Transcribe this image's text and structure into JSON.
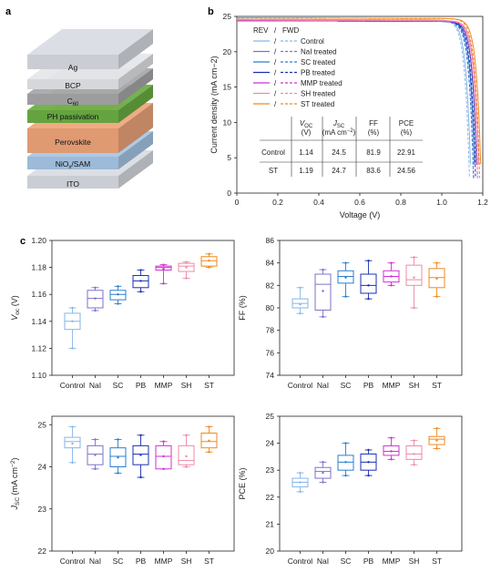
{
  "panel_labels": [
    "a",
    "b",
    "c"
  ],
  "device_stack": {
    "layers": [
      {
        "name": "Ag",
        "color": "#d9dde4"
      },
      {
        "name": "BCP",
        "color": "#e6e7ea"
      },
      {
        "name": "C60",
        "color": "#a9a9ab"
      },
      {
        "name": "PH passivation",
        "color": "#6daf45"
      },
      {
        "name": "Perovskite",
        "color": "#f0a67b"
      },
      {
        "name": "NiOx/SAM",
        "color": "#a9c8e8"
      },
      {
        "name": "ITO",
        "color": "#d9dde4"
      }
    ]
  },
  "jv_legend": {
    "header_rev": "REV",
    "header_slash": "/",
    "header_fwd": "FWD",
    "entries": [
      {
        "label": "Control",
        "color": "#86b6e8"
      },
      {
        "label": "NaI treated",
        "color": "#7b73c7"
      },
      {
        "label": "SC treated",
        "color": "#2a7fd0"
      },
      {
        "label": "PB treated",
        "color": "#1b2fb3"
      },
      {
        "label": "MMP treated",
        "color": "#d22fd2"
      },
      {
        "label": "SH treated",
        "color": "#f08aa5"
      },
      {
        "label": "ST treated",
        "color": "#ef8a1f"
      }
    ]
  },
  "jv_table": {
    "headers": [
      "",
      "VOC (V)",
      "JSC (mA cm−2)",
      "FF (%)",
      "PCE (%)"
    ],
    "rows": [
      [
        "Control",
        "1.14",
        "24.5",
        "81.9",
        "22.91"
      ],
      [
        "ST",
        "1.19",
        "24.7",
        "83.6",
        "24.56"
      ]
    ]
  },
  "chart_data": [
    {
      "type": "line",
      "panel": "b",
      "xlabel": "Voltage (V)",
      "ylabel": "Current density (mA cm−2)",
      "xlim": [
        0,
        1.2
      ],
      "ylim": [
        0,
        25
      ],
      "xticks": [
        "0",
        "0.2",
        "0.4",
        "0.6",
        "0.8",
        "1.0",
        "1.2"
      ],
      "yticks": [
        "0",
        "5",
        "10",
        "15",
        "20",
        "25"
      ],
      "series": [
        {
          "name": "Control",
          "color": "#86b6e8",
          "jsc": 24.5,
          "voc": 1.14
        },
        {
          "name": "NaI treated",
          "color": "#7b73c7",
          "jsc": 24.4,
          "voc": 1.16
        },
        {
          "name": "SC treated",
          "color": "#2a7fd0",
          "jsc": 24.3,
          "voc": 1.16
        },
        {
          "name": "PB treated",
          "color": "#1b2fb3",
          "jsc": 24.3,
          "voc": 1.17
        },
        {
          "name": "MMP treated",
          "color": "#d22fd2",
          "jsc": 24.3,
          "voc": 1.18
        },
        {
          "name": "SH treated",
          "color": "#f08aa5",
          "jsc": 24.4,
          "voc": 1.18
        },
        {
          "name": "ST treated",
          "color": "#ef8a1f",
          "jsc": 24.7,
          "voc": 1.19
        }
      ]
    },
    {
      "type": "box",
      "panel": "c",
      "ylabel": "Voc (V)",
      "ylim": [
        1.1,
        1.2
      ],
      "yticks": [
        "1.10",
        "1.12",
        "1.14",
        "1.16",
        "1.18",
        "1.20"
      ],
      "categories": [
        "Control",
        "NaI",
        "SC",
        "PB",
        "MMP",
        "SH",
        "ST"
      ],
      "boxes": [
        {
          "min": 1.12,
          "q1": 1.134,
          "median": 1.14,
          "q3": 1.146,
          "max": 1.15,
          "mean": 1.14
        },
        {
          "min": 1.148,
          "q1": 1.15,
          "median": 1.157,
          "q3": 1.163,
          "max": 1.165,
          "mean": 1.157
        },
        {
          "min": 1.153,
          "q1": 1.156,
          "median": 1.16,
          "q3": 1.163,
          "max": 1.166,
          "mean": 1.16
        },
        {
          "min": 1.162,
          "q1": 1.165,
          "median": 1.17,
          "q3": 1.174,
          "max": 1.178,
          "mean": 1.17
        },
        {
          "min": 1.168,
          "q1": 1.178,
          "median": 1.18,
          "q3": 1.181,
          "max": 1.182,
          "mean": 1.179
        },
        {
          "min": 1.172,
          "q1": 1.177,
          "median": 1.181,
          "q3": 1.183,
          "max": 1.184,
          "mean": 1.18
        },
        {
          "min": 1.18,
          "q1": 1.181,
          "median": 1.185,
          "q3": 1.188,
          "max": 1.19,
          "mean": 1.185
        }
      ]
    },
    {
      "type": "box",
      "panel": "c",
      "ylabel": "FF (%)",
      "ylim": [
        74,
        86
      ],
      "yticks": [
        "74",
        "76",
        "78",
        "80",
        "82",
        "84",
        "86"
      ],
      "categories": [
        "Control",
        "NaI",
        "SC",
        "PB",
        "MMP",
        "SH",
        "ST"
      ],
      "boxes": [
        {
          "min": 79.5,
          "q1": 80.0,
          "median": 80.4,
          "q3": 80.8,
          "max": 81.8,
          "mean": 80.3
        },
        {
          "min": 79.2,
          "q1": 79.8,
          "median": 82.1,
          "q3": 83.0,
          "max": 83.4,
          "mean": 81.5
        },
        {
          "min": 81.0,
          "q1": 82.2,
          "median": 82.8,
          "q3": 83.3,
          "max": 84.0,
          "mean": 82.7
        },
        {
          "min": 80.8,
          "q1": 81.3,
          "median": 82.0,
          "q3": 83.0,
          "max": 84.2,
          "mean": 82.0
        },
        {
          "min": 82.0,
          "q1": 82.3,
          "median": 82.8,
          "q3": 83.3,
          "max": 84.0,
          "mean": 82.8
        },
        {
          "min": 80.0,
          "q1": 82.0,
          "median": 82.5,
          "q3": 83.8,
          "max": 84.5,
          "mean": 82.7
        },
        {
          "min": 81.0,
          "q1": 81.8,
          "median": 82.7,
          "q3": 83.5,
          "max": 84.0,
          "mean": 82.6
        }
      ]
    },
    {
      "type": "box",
      "panel": "c",
      "ylabel": "Jsc (mA cm−2)",
      "ylim": [
        22,
        25.2
      ],
      "yticks": [
        "22",
        "23",
        "24",
        "25"
      ],
      "categories": [
        "Control",
        "NaI",
        "SC",
        "PB",
        "MMP",
        "SH",
        "ST"
      ],
      "boxes": [
        {
          "min": 24.1,
          "q1": 24.45,
          "median": 24.6,
          "q3": 24.7,
          "max": 24.95,
          "mean": 24.55
        },
        {
          "min": 23.95,
          "q1": 24.05,
          "median": 24.3,
          "q3": 24.5,
          "max": 24.65,
          "mean": 24.28
        },
        {
          "min": 23.85,
          "q1": 24.0,
          "median": 24.25,
          "q3": 24.45,
          "max": 24.65,
          "mean": 24.22
        },
        {
          "min": 23.75,
          "q1": 24.05,
          "median": 24.3,
          "q3": 24.5,
          "max": 24.75,
          "mean": 24.28
        },
        {
          "min": 23.95,
          "q1": 23.95,
          "median": 24.25,
          "q3": 24.5,
          "max": 24.6,
          "mean": 24.25
        },
        {
          "min": 24.0,
          "q1": 24.05,
          "median": 24.15,
          "q3": 24.5,
          "max": 24.75,
          "mean": 24.25
        },
        {
          "min": 24.35,
          "q1": 24.45,
          "median": 24.6,
          "q3": 24.8,
          "max": 24.95,
          "mean": 24.62
        }
      ]
    },
    {
      "type": "box",
      "panel": "c",
      "ylabel": "PCE (%)",
      "ylim": [
        20,
        25
      ],
      "yticks": [
        "20",
        "21",
        "22",
        "23",
        "24",
        "25"
      ],
      "categories": [
        "Control",
        "NaI",
        "SC",
        "PB",
        "MMP",
        "SH",
        "ST"
      ],
      "boxes": [
        {
          "min": 22.2,
          "q1": 22.38,
          "median": 22.55,
          "q3": 22.7,
          "max": 22.9,
          "mean": 22.55
        },
        {
          "min": 22.55,
          "q1": 22.7,
          "median": 22.95,
          "q3": 23.1,
          "max": 23.3,
          "mean": 22.9
        },
        {
          "min": 22.8,
          "q1": 23.0,
          "median": 23.3,
          "q3": 23.55,
          "max": 24.0,
          "mean": 23.3
        },
        {
          "min": 22.8,
          "q1": 23.0,
          "median": 23.3,
          "q3": 23.6,
          "max": 23.75,
          "mean": 23.3
        },
        {
          "min": 23.4,
          "q1": 23.55,
          "median": 23.7,
          "q3": 23.9,
          "max": 24.2,
          "mean": 23.7
        },
        {
          "min": 23.2,
          "q1": 23.4,
          "median": 23.6,
          "q3": 23.9,
          "max": 24.1,
          "mean": 23.6
        },
        {
          "min": 23.8,
          "q1": 23.95,
          "median": 24.15,
          "q3": 24.25,
          "max": 24.55,
          "mean": 24.1
        }
      ]
    }
  ]
}
